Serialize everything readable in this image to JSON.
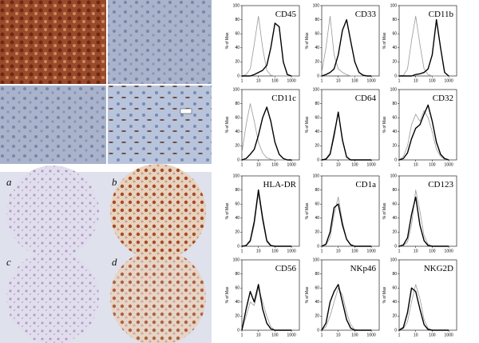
{
  "panel_labels": [
    "a",
    "b",
    "c",
    "d"
  ],
  "chart_data": [
    {
      "type": "line",
      "title": "CD45",
      "ylabel": "% of Max",
      "xscale": "log",
      "x": [
        1,
        1.8,
        3.2,
        5.6,
        10,
        18,
        32,
        56,
        100,
        180,
        320,
        560,
        1000
      ],
      "xlim": [
        1,
        3000
      ],
      "ylim": [
        0,
        100
      ],
      "xticks": [
        1,
        10,
        100,
        1000
      ],
      "yticks": [
        0,
        20,
        40,
        60,
        80,
        100
      ],
      "series": [
        {
          "color": "#999999",
          "values": [
            0,
            2,
            10,
            45,
            85,
            40,
            8,
            1,
            0,
            0,
            0,
            0,
            0
          ]
        },
        {
          "color": "#000000",
          "values": [
            0,
            0,
            0,
            2,
            5,
            8,
            15,
            40,
            75,
            70,
            20,
            2,
            0
          ]
        }
      ]
    },
    {
      "type": "line",
      "title": "CD33",
      "ylabel": "% of Max",
      "xscale": "log",
      "x": [
        1,
        1.8,
        3.2,
        5.6,
        10,
        18,
        32,
        56,
        100,
        180,
        320,
        560,
        1000
      ],
      "xlim": [
        1,
        3000
      ],
      "ylim": [
        0,
        100
      ],
      "xticks": [
        1,
        10,
        100,
        1000
      ],
      "yticks": [
        0,
        20,
        40,
        60,
        80,
        100
      ],
      "series": [
        {
          "color": "#999999",
          "values": [
            5,
            40,
            85,
            30,
            10,
            5,
            2,
            0,
            0,
            0,
            0,
            0,
            0
          ]
        },
        {
          "color": "#000000",
          "values": [
            0,
            2,
            5,
            10,
            30,
            65,
            80,
            50,
            20,
            5,
            1,
            0,
            0
          ]
        }
      ]
    },
    {
      "type": "line",
      "title": "CD11b",
      "ylabel": "% of Max",
      "xscale": "log",
      "x": [
        1,
        1.8,
        3.2,
        5.6,
        10,
        18,
        32,
        56,
        100,
        180,
        320,
        560,
        1000
      ],
      "xlim": [
        1,
        3000
      ],
      "ylim": [
        0,
        100
      ],
      "xticks": [
        1,
        10,
        100,
        1000
      ],
      "yticks": [
        0,
        20,
        40,
        60,
        80,
        100
      ],
      "series": [
        {
          "color": "#999999",
          "values": [
            0,
            1,
            10,
            50,
            85,
            45,
            10,
            2,
            0,
            0,
            0,
            0,
            0
          ]
        },
        {
          "color": "#000000",
          "values": [
            0,
            0,
            0,
            0,
            2,
            3,
            5,
            10,
            30,
            80,
            40,
            5,
            0
          ]
        }
      ]
    },
    {
      "type": "line",
      "title": "CD11c",
      "ylabel": "% of Max",
      "xscale": "log",
      "x": [
        1,
        1.8,
        3.2,
        5.6,
        10,
        18,
        32,
        56,
        100,
        180,
        320,
        560,
        1000
      ],
      "xlim": [
        1,
        3000
      ],
      "ylim": [
        0,
        100
      ],
      "xticks": [
        1,
        10,
        100,
        1000
      ],
      "yticks": [
        0,
        20,
        40,
        60,
        80,
        100
      ],
      "series": [
        {
          "color": "#999999",
          "values": [
            10,
            50,
            80,
            55,
            25,
            10,
            3,
            1,
            0,
            0,
            0,
            0,
            0
          ]
        },
        {
          "color": "#000000",
          "values": [
            0,
            2,
            8,
            15,
            35,
            60,
            75,
            55,
            25,
            8,
            2,
            0,
            0
          ]
        }
      ]
    },
    {
      "type": "line",
      "title": "CD64",
      "ylabel": "% of Max",
      "xscale": "log",
      "x": [
        1,
        1.8,
        3.2,
        5.6,
        10,
        18,
        32,
        56,
        100,
        180,
        320,
        560,
        1000
      ],
      "xlim": [
        1,
        3000
      ],
      "ylim": [
        0,
        100
      ],
      "xticks": [
        1,
        10,
        100,
        1000
      ],
      "yticks": [
        0,
        20,
        40,
        60,
        80,
        100
      ],
      "series": [
        {
          "color": "#999999",
          "values": [
            0,
            2,
            10,
            40,
            65,
            30,
            5,
            0,
            0,
            0,
            0,
            0,
            0
          ]
        },
        {
          "color": "#000000",
          "values": [
            0,
            1,
            8,
            35,
            68,
            28,
            4,
            0,
            0,
            0,
            0,
            0,
            0
          ]
        }
      ]
    },
    {
      "type": "line",
      "title": "CD32",
      "ylabel": "% of Max",
      "xscale": "log",
      "x": [
        1,
        1.8,
        3.2,
        5.6,
        10,
        18,
        32,
        56,
        100,
        180,
        320,
        560,
        1000
      ],
      "xlim": [
        1,
        3000
      ],
      "ylim": [
        0,
        100
      ],
      "xticks": [
        1,
        10,
        100,
        1000
      ],
      "yticks": [
        0,
        20,
        40,
        60,
        80,
        100
      ],
      "series": [
        {
          "color": "#999999",
          "values": [
            0,
            5,
            20,
            50,
            65,
            55,
            70,
            60,
            40,
            15,
            5,
            1,
            0
          ]
        },
        {
          "color": "#000000",
          "values": [
            0,
            2,
            10,
            30,
            45,
            50,
            65,
            78,
            55,
            25,
            8,
            2,
            0
          ]
        }
      ]
    },
    {
      "type": "line",
      "title": "HLA-DR",
      "ylabel": "% of Max",
      "xscale": "log",
      "x": [
        1,
        1.8,
        3.2,
        5.6,
        10,
        18,
        32,
        56,
        100,
        180,
        320,
        560,
        1000
      ],
      "xlim": [
        1,
        3000
      ],
      "ylim": [
        0,
        100
      ],
      "xticks": [
        1,
        10,
        100,
        1000
      ],
      "yticks": [
        0,
        20,
        40,
        60,
        80,
        100
      ],
      "series": [
        {
          "color": "#999999",
          "values": [
            0,
            1,
            6,
            30,
            75,
            35,
            6,
            0,
            0,
            0,
            0,
            0,
            0
          ]
        },
        {
          "color": "#000000",
          "values": [
            0,
            1,
            8,
            35,
            80,
            40,
            8,
            1,
            0,
            0,
            0,
            0,
            0
          ]
        }
      ]
    },
    {
      "type": "line",
      "title": "CD1a",
      "ylabel": "% of Max",
      "xscale": "log",
      "x": [
        1,
        1.8,
        3.2,
        5.6,
        10,
        18,
        32,
        56,
        100,
        180,
        320,
        560,
        1000
      ],
      "xlim": [
        1,
        3000
      ],
      "ylim": [
        0,
        100
      ],
      "xticks": [
        1,
        10,
        100,
        1000
      ],
      "yticks": [
        0,
        20,
        40,
        60,
        80,
        100
      ],
      "series": [
        {
          "color": "#999999",
          "values": [
            0,
            2,
            12,
            45,
            70,
            35,
            10,
            3,
            0,
            0,
            0,
            0,
            0
          ]
        },
        {
          "color": "#000000",
          "values": [
            0,
            3,
            20,
            55,
            60,
            30,
            10,
            2,
            0,
            0,
            0,
            0,
            0
          ]
        }
      ]
    },
    {
      "type": "line",
      "title": "CD123",
      "ylabel": "% of Max",
      "xscale": "log",
      "x": [
        1,
        1.8,
        3.2,
        5.6,
        10,
        18,
        32,
        56,
        100,
        180,
        320,
        560,
        1000
      ],
      "xlim": [
        1,
        3000
      ],
      "ylim": [
        0,
        100
      ],
      "xticks": [
        1,
        10,
        100,
        1000
      ],
      "yticks": [
        0,
        20,
        40,
        60,
        80,
        100
      ],
      "series": [
        {
          "color": "#999999",
          "values": [
            0,
            1,
            6,
            30,
            80,
            50,
            15,
            3,
            0,
            0,
            0,
            0,
            0
          ]
        },
        {
          "color": "#000000",
          "values": [
            0,
            2,
            12,
            45,
            70,
            30,
            8,
            1,
            0,
            0,
            0,
            0,
            0
          ]
        }
      ]
    },
    {
      "type": "line",
      "title": "CD56",
      "ylabel": "% of Max",
      "xscale": "log",
      "x": [
        1,
        1.8,
        3.2,
        5.6,
        10,
        18,
        32,
        56,
        100,
        180,
        320,
        560,
        1000
      ],
      "xlim": [
        1,
        3000
      ],
      "ylim": [
        0,
        100
      ],
      "xticks": [
        1,
        10,
        100,
        1000
      ],
      "yticks": [
        0,
        20,
        40,
        60,
        80,
        100
      ],
      "series": [
        {
          "color": "#999999",
          "values": [
            0,
            20,
            40,
            35,
            60,
            40,
            20,
            5,
            0,
            0,
            0,
            0,
            0
          ]
        },
        {
          "color": "#000000",
          "values": [
            0,
            30,
            55,
            40,
            65,
            30,
            10,
            2,
            0,
            0,
            0,
            0,
            0
          ]
        }
      ]
    },
    {
      "type": "line",
      "title": "NKp46",
      "ylabel": "% of Max",
      "xscale": "log",
      "x": [
        1,
        1.8,
        3.2,
        5.6,
        10,
        18,
        32,
        56,
        100,
        180,
        320,
        560,
        1000
      ],
      "xlim": [
        1,
        3000
      ],
      "ylim": [
        0,
        100
      ],
      "xticks": [
        1,
        10,
        100,
        1000
      ],
      "yticks": [
        0,
        20,
        40,
        60,
        80,
        100
      ],
      "series": [
        {
          "color": "#999999",
          "values": [
            0,
            5,
            20,
            40,
            60,
            50,
            25,
            8,
            1,
            0,
            0,
            0,
            0
          ]
        },
        {
          "color": "#000000",
          "values": [
            0,
            10,
            40,
            55,
            65,
            40,
            15,
            3,
            0,
            0,
            0,
            0,
            0
          ]
        }
      ]
    },
    {
      "type": "line",
      "title": "NKG2D",
      "ylabel": "% of Max",
      "xscale": "log",
      "x": [
        1,
        1.8,
        3.2,
        5.6,
        10,
        18,
        32,
        56,
        100,
        180,
        320,
        560,
        1000
      ],
      "xlim": [
        1,
        3000
      ],
      "ylim": [
        0,
        100
      ],
      "xticks": [
        1,
        10,
        100,
        1000
      ],
      "yticks": [
        0,
        20,
        40,
        60,
        80,
        100
      ],
      "series": [
        {
          "color": "#999999",
          "values": [
            0,
            2,
            12,
            40,
            65,
            45,
            15,
            3,
            0,
            0,
            0,
            0,
            0
          ]
        },
        {
          "color": "#000000",
          "values": [
            0,
            4,
            25,
            60,
            55,
            30,
            8,
            1,
            0,
            0,
            0,
            0,
            0
          ]
        }
      ]
    }
  ]
}
